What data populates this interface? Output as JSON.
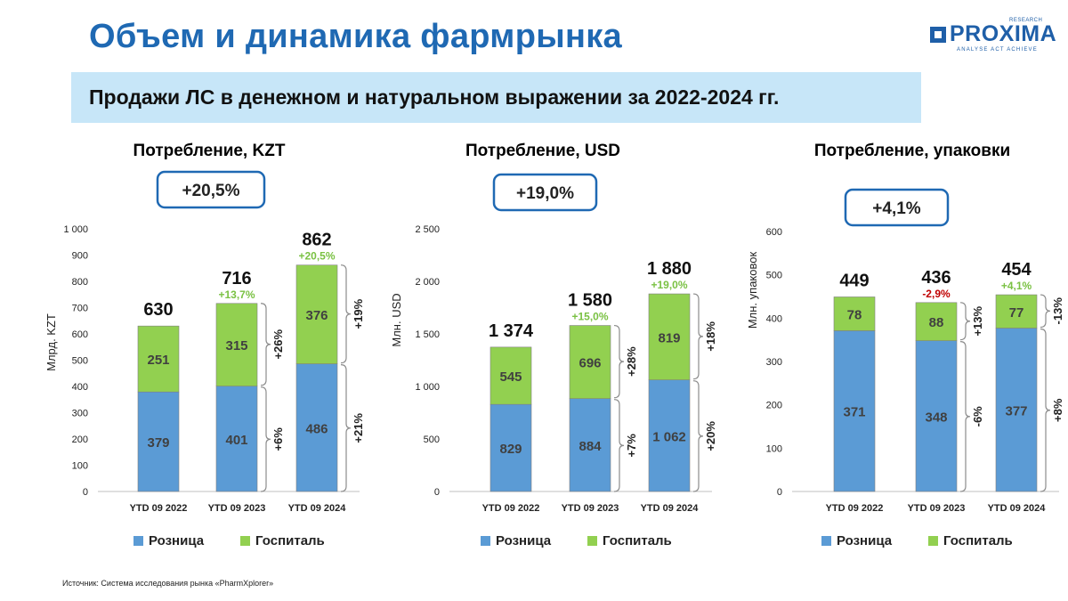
{
  "header": {
    "title": "Объем и динамика фармрынка",
    "subtitle": "Продажи ЛС в денежном и натуральном выражении за 2022-2024 гг."
  },
  "logo": {
    "name": "PROXIMA",
    "research": "RESEARCH",
    "tagline": "ANALYSE  ACT  ACHIEVE"
  },
  "source": "Источник: Система исследования рынка «PharmXplorer»",
  "colors": {
    "retail": "#5b9bd5",
    "hospital": "#92d050",
    "title": "#1f69b3",
    "growth_pos": "#7ac143",
    "growth_neg": "#c00000",
    "badge_border": "#1f69b3"
  },
  "chart_data": [
    {
      "type": "bar",
      "title": "Потребление, KZT",
      "badge": "+20,5%",
      "ylabel": "Млрд. KZT",
      "ylim": [
        0,
        1000
      ],
      "yticks": [
        "0",
        "100",
        "200",
        "300",
        "400",
        "500",
        "600",
        "700",
        "800",
        "900",
        "1 000"
      ],
      "categories": [
        "YTD 09 2022",
        "YTD 09 2023",
        "YTD 09 2024"
      ],
      "series": [
        {
          "name": "Розница",
          "values": [
            379,
            401,
            486
          ],
          "labels": [
            "379",
            "401",
            "486"
          ]
        },
        {
          "name": "Госпиталь",
          "values": [
            251,
            315,
            376
          ],
          "labels": [
            "251",
            "315",
            "376"
          ]
        }
      ],
      "totals": [
        "630",
        "716",
        "862"
      ],
      "growth": [
        "",
        "+13,7%",
        "+20,5%"
      ],
      "segment_growth": [
        {
          "retail": "+6%",
          "hospital": "+26%"
        },
        {
          "retail": "+21%",
          "hospital": "+19%"
        }
      ],
      "legend": [
        "Розница",
        "Госпиталь"
      ]
    },
    {
      "type": "bar",
      "title": "Потребление, USD",
      "badge": "+19,0%",
      "ylabel": "Млн. USD",
      "ylim": [
        0,
        2500
      ],
      "yticks": [
        "0",
        "500",
        "1 000",
        "1 500",
        "2 000",
        "2 500"
      ],
      "categories": [
        "YTD 09 2022",
        "YTD 09 2023",
        "YTD 09 2024"
      ],
      "series": [
        {
          "name": "Розница",
          "values": [
            829,
            884,
            1062
          ],
          "labels": [
            "829",
            "884",
            "1 062"
          ]
        },
        {
          "name": "Госпиталь",
          "values": [
            545,
            696,
            819
          ],
          "labels": [
            "545",
            "696",
            "819"
          ]
        }
      ],
      "totals": [
        "1 374",
        "1 580",
        "1 880"
      ],
      "growth": [
        "",
        "+15,0%",
        "+19,0%"
      ],
      "segment_growth": [
        {
          "retail": "+7%",
          "hospital": "+28%"
        },
        {
          "retail": "+20%",
          "hospital": "+18%"
        }
      ],
      "legend": [
        "Розница",
        "Госпиталь"
      ]
    },
    {
      "type": "bar",
      "title": "Потребление, упаковки",
      "badge": "+4,1%",
      "ylabel": "Млн. упаковок",
      "ylim": [
        0,
        600
      ],
      "yticks": [
        "0",
        "100",
        "200",
        "300",
        "400",
        "500",
        "600"
      ],
      "categories": [
        "YTD 09 2022",
        "YTD 09 2023",
        "YTD 09 2024"
      ],
      "series": [
        {
          "name": "Розница",
          "values": [
            371,
            348,
            377
          ],
          "labels": [
            "371",
            "348",
            "377"
          ]
        },
        {
          "name": "Госпиталь",
          "values": [
            78,
            88,
            77
          ],
          "labels": [
            "78",
            "88",
            "77"
          ]
        }
      ],
      "totals": [
        "449",
        "436",
        "454"
      ],
      "growth": [
        "",
        "-2,9%",
        "+4,1%"
      ],
      "segment_growth": [
        {
          "retail": "-6%",
          "hospital": "+13%"
        },
        {
          "retail": "+8%",
          "hospital": "-13%"
        }
      ],
      "legend": [
        "Розница",
        "Госпиталь"
      ]
    }
  ]
}
